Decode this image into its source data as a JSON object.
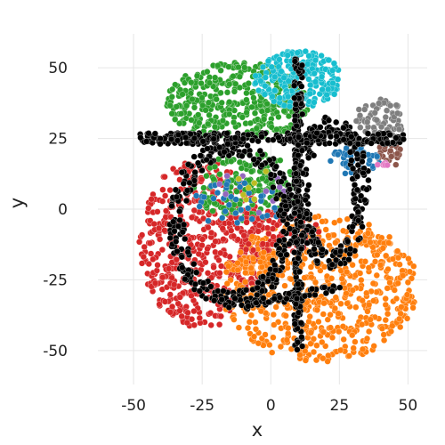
{
  "chart_data": {
    "type": "scatter",
    "title": "",
    "xlabel": "x",
    "ylabel": "y",
    "xlim": [
      -63,
      57
    ],
    "ylim": [
      -62,
      62
    ],
    "xticks": [
      "-50",
      "-25",
      "0",
      "25",
      "50"
    ],
    "yticks": [
      "50",
      "25",
      "0",
      "-25",
      "-50"
    ],
    "xtick_values": [
      -50,
      -25,
      0,
      25,
      50
    ],
    "ytick_values": [
      50,
      25,
      0,
      -25,
      -50
    ],
    "grid": true,
    "legend": "none",
    "colors": {
      "red": "#d62728",
      "orange": "#ff7f0e",
      "green": "#2ca02c",
      "cyan": "#17becf",
      "black": "#000000",
      "blue": "#1f77b4",
      "gray": "#7f7f7f",
      "brown": "#8c564b",
      "pink": "#e377c2",
      "purple": "#9467bd",
      "olive": "#bcbd22"
    },
    "series": [
      {
        "color": "red",
        "region": {
          "shape": "disc",
          "center": [
            -25,
            -12
          ],
          "radii": [
            23,
            30
          ]
        },
        "count": 520
      },
      {
        "color": "orange",
        "region": {
          "shape": "disc",
          "center": [
            18,
            -28
          ],
          "radii": [
            36,
            26
          ]
        },
        "count": 640
      },
      {
        "color": "green",
        "region": {
          "shape": "disc",
          "center": [
            -12,
            38
          ],
          "radii": [
            26,
            14
          ]
        },
        "count": 380
      },
      {
        "color": "cyan",
        "region": {
          "shape": "disc",
          "center": [
            10,
            46
          ],
          "radii": [
            16,
            10
          ]
        },
        "count": 230
      },
      {
        "color": "gray",
        "region": {
          "shape": "disc",
          "center": [
            40,
            32
          ],
          "radii": [
            9,
            7
          ]
        },
        "count": 70
      },
      {
        "color": "brown",
        "region": {
          "shape": "disc",
          "center": [
            43,
            19
          ],
          "radii": [
            5,
            4
          ]
        },
        "count": 25
      },
      {
        "color": "blue",
        "region": {
          "shape": "disc",
          "center": [
            30,
            17
          ],
          "radii": [
            10,
            5
          ]
        },
        "count": 45
      },
      {
        "color": "pink",
        "region": {
          "shape": "disc",
          "center": [
            40,
            15
          ],
          "radii": [
            3,
            2
          ]
        },
        "count": 6
      },
      {
        "color": "green",
        "region": {
          "shape": "disc",
          "center": [
            -8,
            8
          ],
          "radii": [
            20,
            12
          ]
        },
        "count": 160
      },
      {
        "color": "red",
        "region": {
          "shape": "disc",
          "center": [
            0,
            -8
          ],
          "radii": [
            18,
            9
          ]
        },
        "count": 90
      },
      {
        "color": "orange",
        "region": {
          "shape": "disc",
          "center": [
            -2,
            -20
          ],
          "radii": [
            11,
            5
          ]
        },
        "count": 45
      },
      {
        "color": "blue",
        "region": {
          "shape": "disc",
          "center": [
            -12,
            2
          ],
          "radii": [
            18,
            8
          ]
        },
        "count": 40
      },
      {
        "color": "purple",
        "region": {
          "shape": "disc",
          "center": [
            -6,
            6
          ],
          "radii": [
            16,
            8
          ]
        },
        "count": 12
      },
      {
        "color": "olive",
        "region": {
          "shape": "disc",
          "center": [
            -2,
            8
          ],
          "radii": [
            12,
            6
          ]
        },
        "count": 8
      },
      {
        "color": "black",
        "region": {
          "shape": "ellipse-ring",
          "center": [
            -14,
            -5
          ],
          "radii": [
            20,
            27
          ],
          "thickness": 3
        },
        "count": 310
      },
      {
        "color": "black",
        "region": {
          "shape": "ellipse-ring",
          "center": [
            22,
            6
          ],
          "radii": [
            11,
            24
          ],
          "thickness": 3
        },
        "count": 240
      },
      {
        "color": "black",
        "region": {
          "shape": "segment",
          "from": [
            -47,
            25
          ],
          "to": [
            48,
            25
          ],
          "thickness": 4
        },
        "count": 260
      },
      {
        "color": "black",
        "region": {
          "shape": "segment",
          "from": [
            10,
            54
          ],
          "to": [
            10,
            -50
          ],
          "thickness": 3
        },
        "count": 230
      },
      {
        "color": "black",
        "region": {
          "shape": "segment",
          "from": [
            -10,
            -34
          ],
          "to": [
            24,
            -28
          ],
          "thickness": 3
        },
        "count": 60
      }
    ]
  }
}
